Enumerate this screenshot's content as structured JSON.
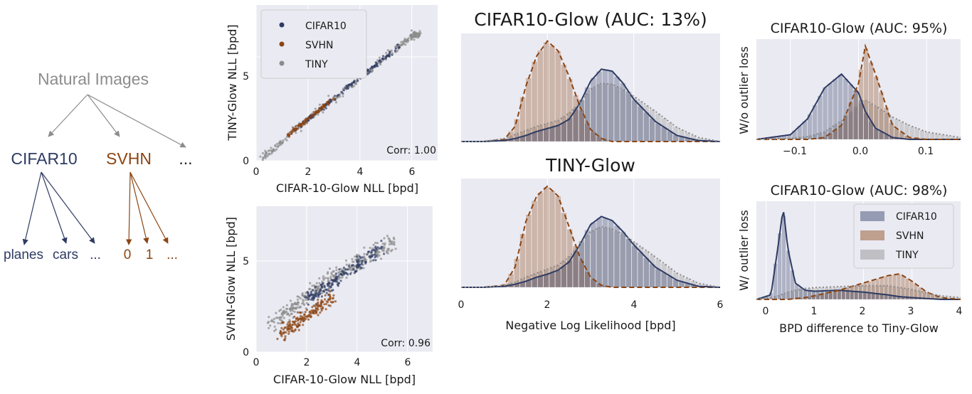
{
  "colors": {
    "cifar": "#2e3b63",
    "svhn": "#8b4513",
    "tiny": "#8c8c8c",
    "panel_bg": "#eaeaf2",
    "grid": "#ffffff"
  },
  "tree": {
    "root": "Natural Images",
    "cifar": "CIFAR10",
    "svhn": "SVHN",
    "more": "...",
    "cifar_children": [
      "planes",
      "cars",
      "..."
    ],
    "svhn_children": [
      "0",
      "1",
      "..."
    ]
  },
  "chart_data": [
    {
      "id": "scatter_tiny",
      "type": "scatter",
      "xlabel": "CIFAR-10-Glow NLL [bpd]",
      "ylabel": "TINY-Glow NLL [bpd]",
      "xlim": [
        0,
        7
      ],
      "ylim": [
        0,
        7.5
      ],
      "xticks": [
        "0",
        "2",
        "4",
        "6"
      ],
      "yticks": [
        "0",
        "5"
      ],
      "grid": true,
      "legend": "top-left",
      "annotation": "Corr: 1.00",
      "series": [
        {
          "name": "CIFAR10",
          "x": [
            1.5,
            2.5,
            3.5,
            4.5,
            5.5
          ],
          "y": [
            1.5,
            2.5,
            3.5,
            4.5,
            5.5
          ]
        },
        {
          "name": "SVHN",
          "x": [
            1.2,
            1.8,
            2.4,
            3.0
          ],
          "y": [
            1.2,
            1.8,
            2.4,
            3.0
          ]
        },
        {
          "name": "TINY",
          "x": [
            0.2,
            1.0,
            2.0,
            3.0,
            4.0,
            5.0,
            6.0,
            6.3
          ],
          "y": [
            0.1,
            0.9,
            2.0,
            3.0,
            4.0,
            5.0,
            6.0,
            6.1
          ]
        }
      ]
    },
    {
      "id": "scatter_svhn",
      "type": "scatter",
      "xlabel": "CIFAR-10-Glow NLL [bpd]",
      "ylabel": "SVHN-Glow NLL [bpd]",
      "xlim": [
        0,
        7
      ],
      "ylim": [
        0,
        8
      ],
      "xticks": [
        "0",
        "2",
        "4",
        "6"
      ],
      "yticks": [
        "0",
        "5"
      ],
      "grid": true,
      "annotation": "Corr: 0.96",
      "series": [
        {
          "name": "CIFAR10",
          "x": [
            2.0,
            3.0,
            4.0,
            5.0
          ],
          "y": [
            2.8,
            3.8,
            4.8,
            5.7
          ]
        },
        {
          "name": "SVHN",
          "x": [
            1.0,
            1.5,
            2.0,
            2.5,
            3.0
          ],
          "y": [
            1.0,
            1.5,
            2.0,
            2.5,
            3.0
          ]
        },
        {
          "name": "TINY",
          "x": [
            0.5,
            1.5,
            2.5,
            3.5,
            4.5,
            5.5
          ],
          "y": [
            1.5,
            2.5,
            3.5,
            4.5,
            5.3,
            6.0
          ]
        }
      ]
    },
    {
      "id": "hist_cifar",
      "type": "area",
      "title": "CIFAR10-Glow (AUC: 13%)",
      "xlim": [
        0,
        6
      ],
      "grid": true,
      "x": [
        0,
        0.5,
        1.0,
        1.25,
        1.5,
        1.75,
        2.0,
        2.25,
        2.5,
        2.75,
        3.0,
        3.25,
        3.5,
        3.75,
        4.0,
        4.5,
        5.0,
        5.5,
        6.0
      ],
      "series": [
        {
          "name": "SVHN",
          "values": [
            0,
            0,
            0.02,
            0.15,
            0.55,
            0.85,
            1.0,
            0.9,
            0.65,
            0.35,
            0.12,
            0.03,
            0,
            0,
            0,
            0,
            0,
            0,
            0
          ]
        },
        {
          "name": "CIFAR10",
          "values": [
            0,
            0,
            0.01,
            0.03,
            0.06,
            0.1,
            0.13,
            0.16,
            0.22,
            0.38,
            0.6,
            0.72,
            0.7,
            0.58,
            0.42,
            0.2,
            0.06,
            0.01,
            0
          ]
        },
        {
          "name": "TINY",
          "values": [
            0,
            0,
            0.03,
            0.07,
            0.11,
            0.15,
            0.18,
            0.21,
            0.28,
            0.38,
            0.52,
            0.58,
            0.57,
            0.52,
            0.45,
            0.3,
            0.14,
            0.04,
            0
          ]
        }
      ]
    },
    {
      "id": "hist_tiny",
      "type": "area",
      "title": "TINY-Glow",
      "xlabel": "Negative Log Likelihood [bpd]",
      "xlim": [
        0,
        6
      ],
      "xticks": [
        "0",
        "2",
        "4",
        "6"
      ],
      "grid": true,
      "x": [
        0,
        0.5,
        1.0,
        1.25,
        1.5,
        1.75,
        2.0,
        2.25,
        2.5,
        2.75,
        3.0,
        3.25,
        3.5,
        3.75,
        4.0,
        4.5,
        5.0,
        5.5,
        6.0
      ],
      "series": [
        {
          "name": "SVHN",
          "values": [
            0,
            0,
            0.02,
            0.2,
            0.65,
            0.9,
            1.0,
            0.9,
            0.6,
            0.3,
            0.1,
            0.02,
            0,
            0,
            0,
            0,
            0,
            0,
            0
          ]
        },
        {
          "name": "CIFAR10",
          "values": [
            0,
            0,
            0.01,
            0.03,
            0.06,
            0.1,
            0.13,
            0.17,
            0.25,
            0.42,
            0.62,
            0.7,
            0.66,
            0.55,
            0.42,
            0.2,
            0.07,
            0.01,
            0
          ]
        },
        {
          "name": "TINY",
          "values": [
            0,
            0,
            0.02,
            0.05,
            0.1,
            0.14,
            0.18,
            0.22,
            0.3,
            0.42,
            0.55,
            0.6,
            0.58,
            0.52,
            0.45,
            0.3,
            0.14,
            0.04,
            0
          ]
        }
      ]
    },
    {
      "id": "hist_wo",
      "type": "area",
      "title": "CIFAR10-Glow (AUC: 95%)",
      "ylabel": "W/o outlier loss",
      "xlim": [
        -0.15,
        0.15
      ],
      "xticks": [
        "−0.1",
        "0.0",
        "0.1"
      ],
      "grid": true,
      "x": [
        -0.15,
        -0.1,
        -0.075,
        -0.05,
        -0.025,
        0.0,
        0.01,
        0.025,
        0.05,
        0.075,
        0.1,
        0.15
      ],
      "series": [
        {
          "name": "CIFAR10",
          "values": [
            0,
            0.05,
            0.22,
            0.55,
            0.7,
            0.5,
            0.3,
            0.12,
            0.02,
            0,
            0,
            0
          ]
        },
        {
          "name": "SVHN",
          "values": [
            0,
            0,
            0,
            0.02,
            0.15,
            0.6,
            1.0,
            0.7,
            0.15,
            0.02,
            0,
            0
          ]
        },
        {
          "name": "TINY",
          "values": [
            0,
            0.01,
            0.03,
            0.08,
            0.2,
            0.38,
            0.42,
            0.36,
            0.24,
            0.15,
            0.08,
            0.02
          ]
        }
      ]
    },
    {
      "id": "hist_w",
      "type": "area",
      "title": "CIFAR10-Glow (AUC: 98%)",
      "ylabel": "W/ outlier loss",
      "xlabel": "BPD difference to Tiny-Glow",
      "xlim": [
        -0.2,
        4
      ],
      "xticks": [
        "0",
        "1",
        "2",
        "3",
        "4"
      ],
      "grid": true,
      "legend": "top-right",
      "x": [
        -0.2,
        0.1,
        0.25,
        0.35,
        0.45,
        0.6,
        0.8,
        1.0,
        1.5,
        2.0,
        2.5,
        2.75,
        3.0,
        3.3,
        3.6,
        4.0
      ],
      "series": [
        {
          "name": "CIFAR10",
          "values": [
            0,
            0.05,
            0.6,
            1.0,
            0.55,
            0.18,
            0.1,
            0.09,
            0.1,
            0.08,
            0.05,
            0.03,
            0.02,
            0.01,
            0,
            0
          ]
        },
        {
          "name": "SVHN",
          "values": [
            0,
            0,
            0,
            0,
            0,
            0.01,
            0.02,
            0.04,
            0.1,
            0.18,
            0.26,
            0.28,
            0.2,
            0.08,
            0.02,
            0
          ]
        },
        {
          "name": "TINY",
          "values": [
            0,
            0.02,
            0.04,
            0.06,
            0.08,
            0.1,
            0.12,
            0.13,
            0.14,
            0.15,
            0.15,
            0.13,
            0.11,
            0.07,
            0.04,
            0.02
          ]
        }
      ]
    }
  ]
}
